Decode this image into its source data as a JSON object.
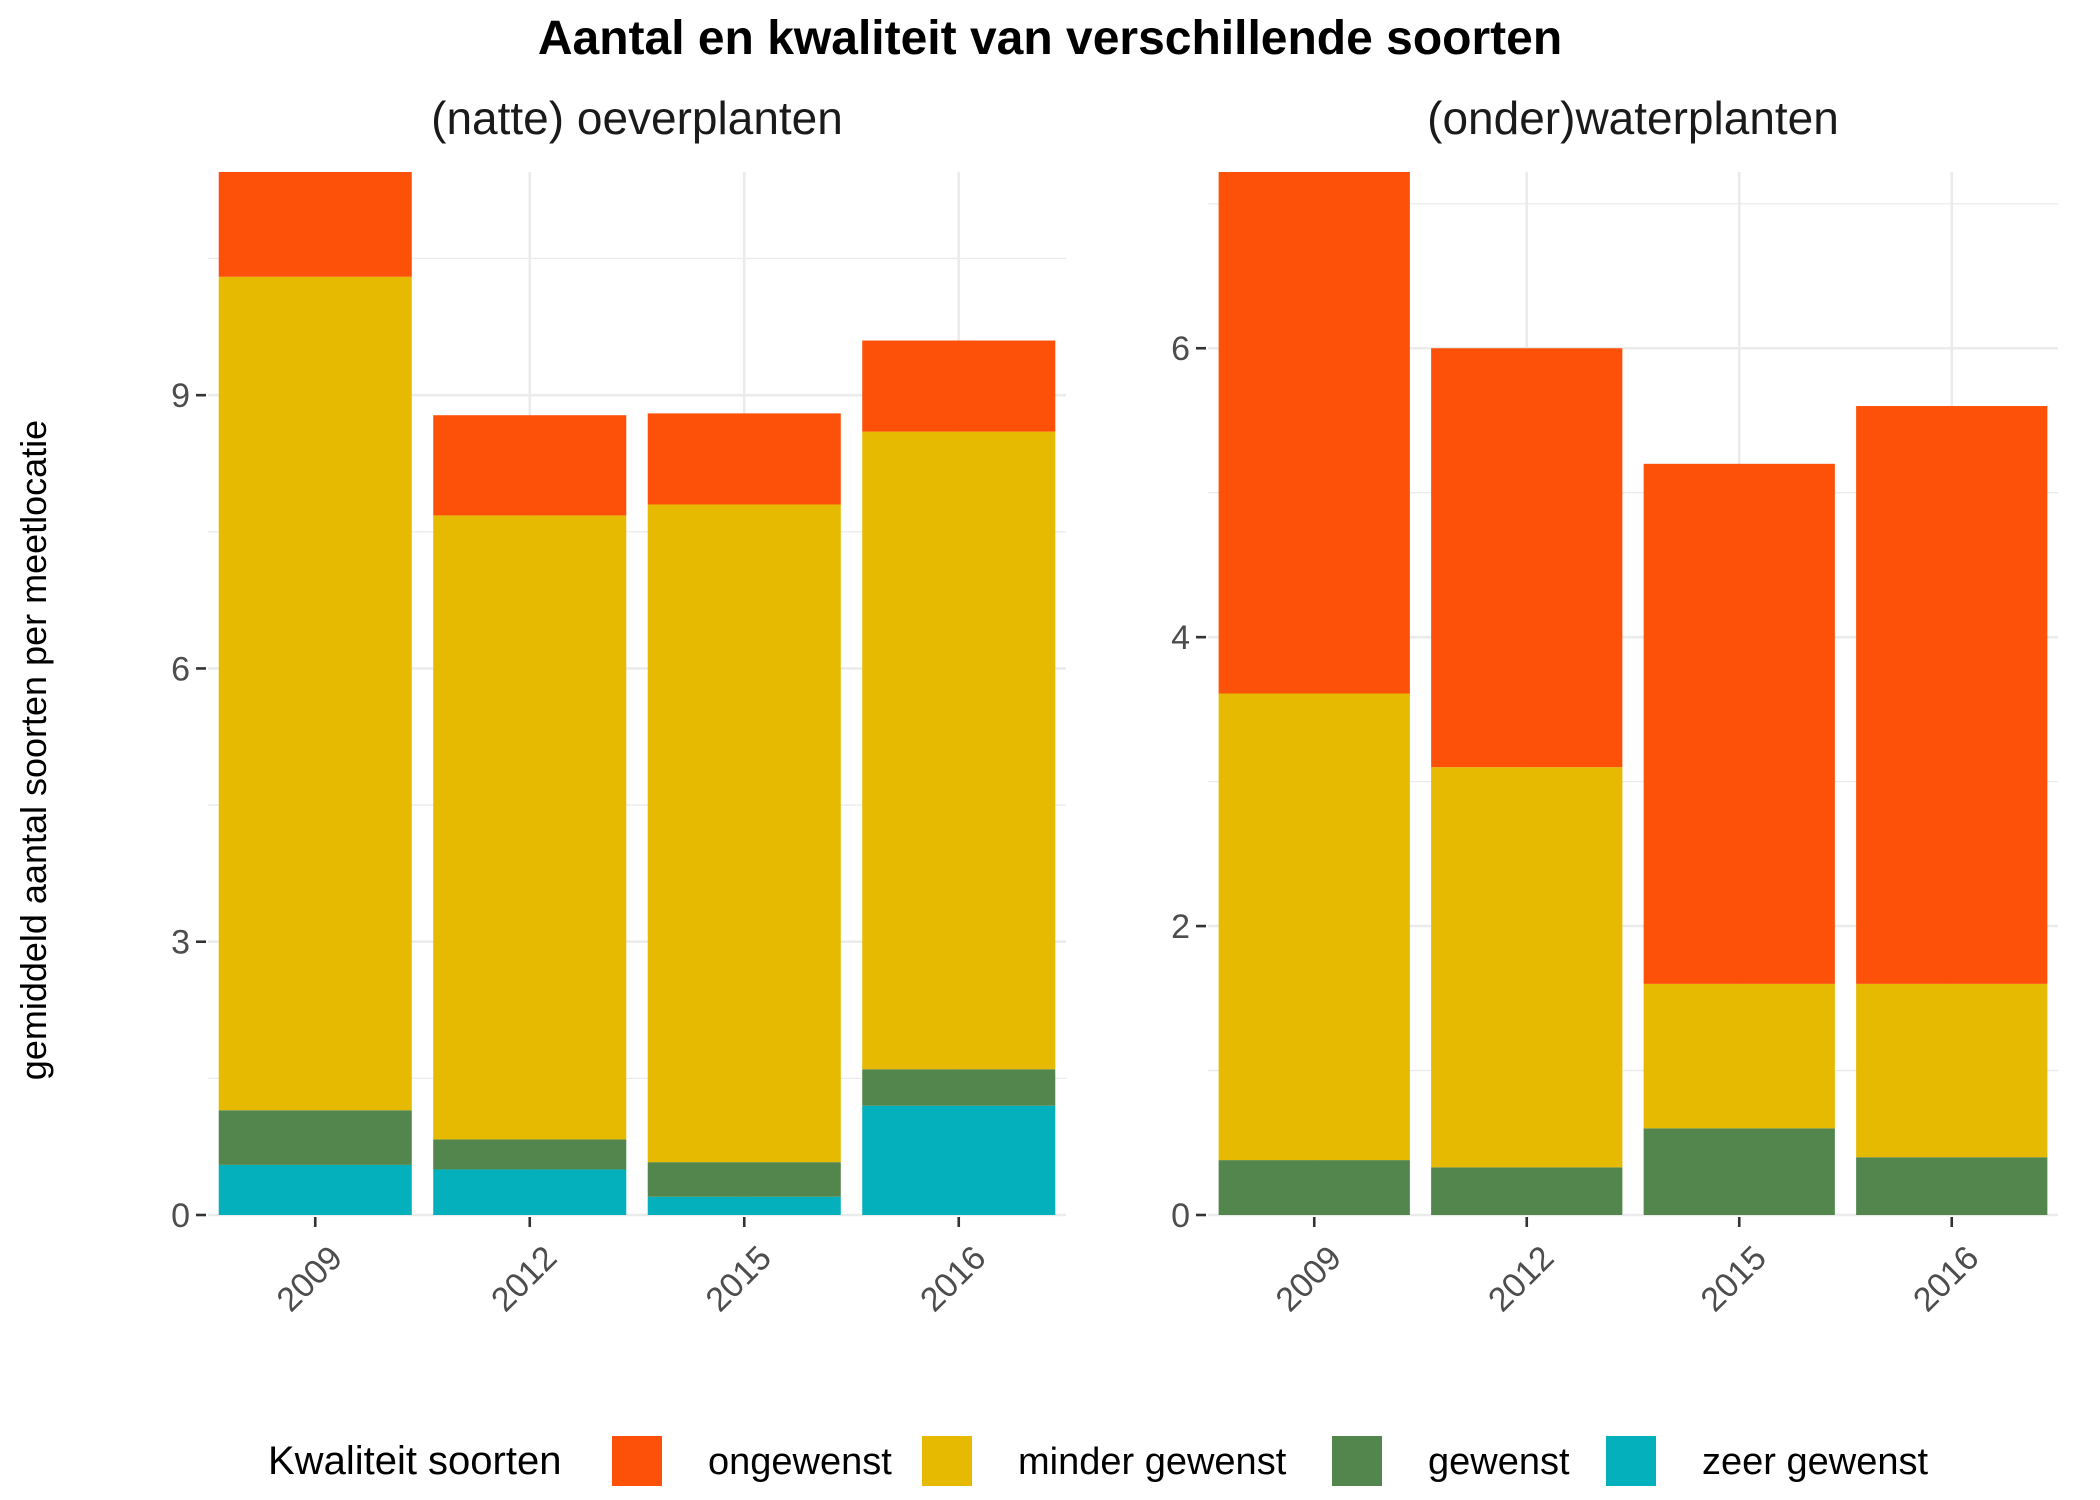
{
  "title": "Aantal en kwaliteit van verschillende soorten",
  "ylabel": "gemiddeld aantal soorten per meetlocatie",
  "legend": {
    "title": "Kwaliteit soorten",
    "position": "bottom",
    "items": [
      {
        "label": "ongewenst",
        "color": "#FD5109"
      },
      {
        "label": "minder gewenst",
        "color": "#E5BA01"
      },
      {
        "label": "gewenst",
        "color": "#52864D"
      },
      {
        "label": "zeer gewenst",
        "color": "#03B0BB"
      }
    ]
  },
  "chart_data": [
    {
      "type": "bar",
      "stacked": true,
      "title": "(natte) oeverplanten",
      "categories": [
        "2009",
        "2012",
        "2015",
        "2016"
      ],
      "ylim": [
        0,
        11.45
      ],
      "yticks": [
        0,
        3,
        6,
        9
      ],
      "grid": true,
      "series": [
        {
          "name": "zeer gewenst",
          "color": "#03B0BB",
          "values": [
            0.55,
            0.5,
            0.2,
            1.2
          ]
        },
        {
          "name": "gewenst",
          "color": "#52864D",
          "values": [
            0.6,
            0.33,
            0.38,
            0.4
          ]
        },
        {
          "name": "minder gewenst",
          "color": "#E5BA01",
          "values": [
            9.15,
            6.85,
            7.22,
            7.0
          ]
        },
        {
          "name": "ongewenst",
          "color": "#FD5109",
          "values": [
            1.15,
            1.1,
            1.0,
            1.0
          ]
        }
      ]
    },
    {
      "type": "bar",
      "stacked": true,
      "title": "(onder)waterplanten",
      "categories": [
        "2009",
        "2012",
        "2015",
        "2016"
      ],
      "ylim": [
        0,
        7.22
      ],
      "yticks": [
        0,
        2,
        4,
        6
      ],
      "grid": true,
      "series": [
        {
          "name": "zeer gewenst",
          "color": "#03B0BB",
          "values": [
            0,
            0,
            0,
            0
          ]
        },
        {
          "name": "gewenst",
          "color": "#52864D",
          "values": [
            0.38,
            0.33,
            0.6,
            0.4
          ]
        },
        {
          "name": "minder gewenst",
          "color": "#E5BA01",
          "values": [
            3.23,
            2.77,
            1.0,
            1.2
          ]
        },
        {
          "name": "ongewenst",
          "color": "#FD5109",
          "values": [
            3.61,
            2.9,
            3.6,
            4.0
          ]
        }
      ]
    }
  ]
}
